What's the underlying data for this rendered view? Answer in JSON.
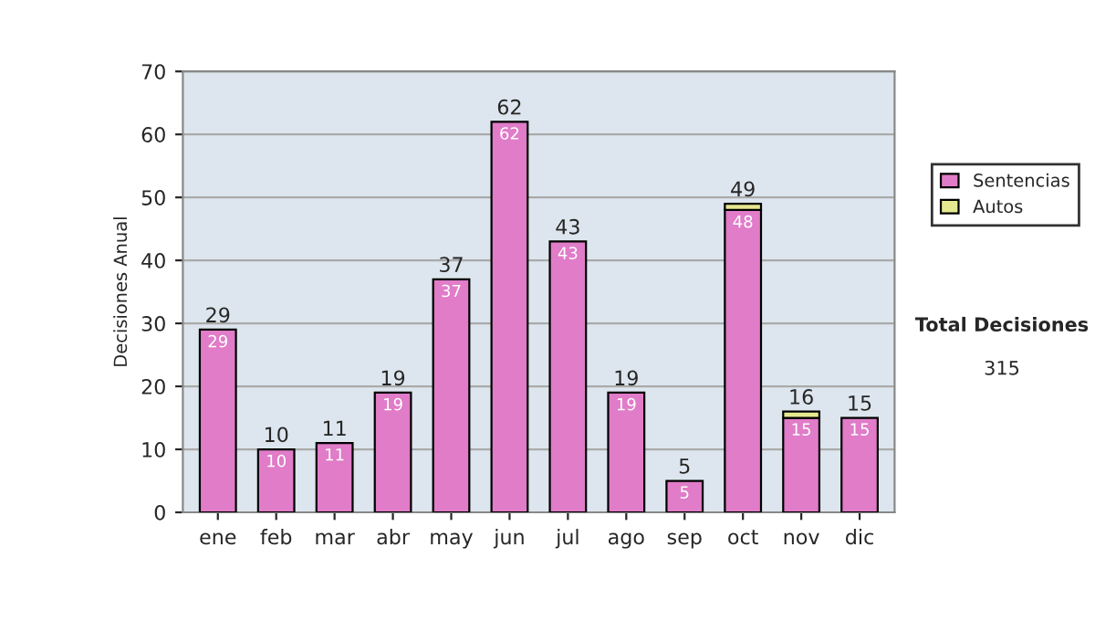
{
  "chart_data": {
    "type": "bar",
    "stacked": true,
    "ylabel": "Decisiones Anual",
    "categories": [
      "ene",
      "feb",
      "mar",
      "abr",
      "may",
      "jun",
      "jul",
      "ago",
      "sep",
      "oct",
      "nov",
      "dic"
    ],
    "series": [
      {
        "name": "Sentencias",
        "color": "#e07cc8",
        "values": [
          29,
          10,
          11,
          19,
          37,
          62,
          43,
          19,
          5,
          48,
          15,
          15
        ],
        "value_labels": [
          "29",
          "10",
          "11",
          "19",
          "37",
          "62",
          "43",
          "19",
          "5",
          "48",
          "15",
          "15"
        ]
      },
      {
        "name": "Autos",
        "color": "#e6e890",
        "values": [
          null,
          null,
          null,
          null,
          null,
          null,
          null,
          null,
          null,
          1,
          1,
          null
        ]
      }
    ],
    "totals": [
      "29",
      "10",
      "11",
      "19",
      "37",
      "62",
      "43",
      "19",
      "5",
      "49",
      "16",
      "15"
    ],
    "ylim": [
      0,
      70
    ],
    "yticks": [
      0,
      10,
      20,
      30,
      40,
      50,
      60,
      70
    ],
    "grid": "y",
    "legend": "right",
    "annotations": [
      "Total Decisiones",
      "315"
    ]
  }
}
